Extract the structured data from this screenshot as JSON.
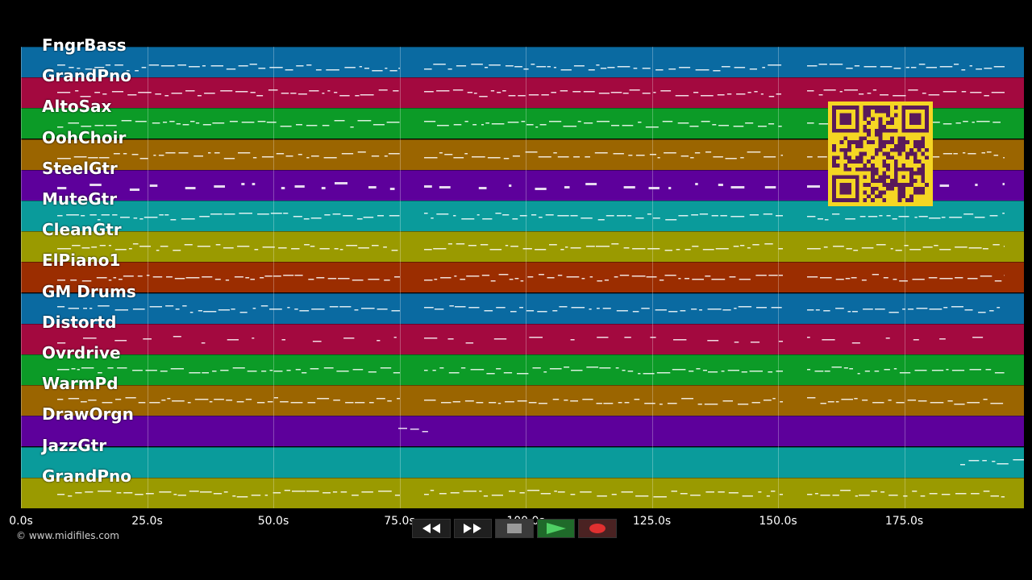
{
  "tracks": [
    {
      "name": "FngrBass",
      "color": "#0a6aa1"
    },
    {
      "name": "GrandPno",
      "color": "#a3093f"
    },
    {
      "name": "AltoSax",
      "color": "#0c9b27"
    },
    {
      "name": "OohChoir",
      "color": "#9b6500"
    },
    {
      "name": "SteelGtr",
      "color": "#5d009b"
    },
    {
      "name": "MuteGtr",
      "color": "#0a9b9b"
    },
    {
      "name": "CleanGtr",
      "color": "#9a9a00"
    },
    {
      "name": "ElPiano1",
      "color": "#9b2d00"
    },
    {
      "name": "GM Drums",
      "color": "#0a6aa1"
    },
    {
      "name": "Distortd",
      "color": "#a3093f"
    },
    {
      "name": "Ovrdrive",
      "color": "#0c9b27"
    },
    {
      "name": "WarmPd",
      "color": "#9b6500"
    },
    {
      "name": "DrawOrgn",
      "color": "#5d009b"
    },
    {
      "name": "JazzGtr",
      "color": "#0a9b9b"
    },
    {
      "name": "GrandPno",
      "color": "#9a9a00"
    }
  ],
  "timeline": {
    "ticks": [
      "0.0s",
      "25.0s",
      "50.0s",
      "75.0s",
      "100.0s",
      "125.0s",
      "150.0s",
      "175.0s"
    ],
    "hidden_tick": "100.0s"
  },
  "transport": {
    "rewind_icon": "rewind-icon",
    "forward_icon": "fast-forward-icon",
    "stop_icon": "stop-icon",
    "play_icon": "play-icon",
    "record_icon": "record-icon"
  },
  "copyright": "© www.midifiles.com"
}
